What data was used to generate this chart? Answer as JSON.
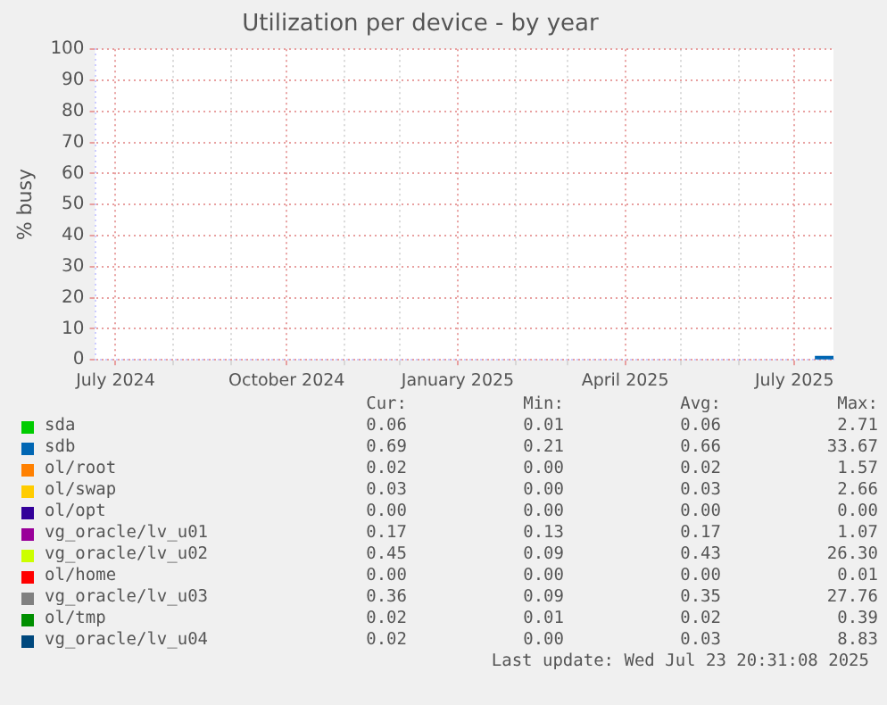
{
  "chart_data": {
    "type": "line",
    "title": "Utilization per device - by year",
    "ylabel": "% busy",
    "x": [
      "2025-07-12",
      "2025-07-22"
    ],
    "series": [
      {
        "name": "sda",
        "color": "#00cc00",
        "values": [
          null,
          null
        ]
      },
      {
        "name": "sdb",
        "color": "#0066b3",
        "values": [
          0.7,
          0.7
        ]
      },
      {
        "name": "ol/root",
        "color": "#ff8000",
        "values": [
          null,
          null
        ]
      },
      {
        "name": "ol/swap",
        "color": "#ffcc00",
        "values": [
          null,
          null
        ]
      },
      {
        "name": "ol/opt",
        "color": "#330099",
        "values": [
          null,
          null
        ]
      },
      {
        "name": "vg_oracle/lv_u01",
        "color": "#990099",
        "values": [
          null,
          null
        ]
      },
      {
        "name": "vg_oracle/lv_u02",
        "color": "#ccff00",
        "values": [
          null,
          null
        ]
      },
      {
        "name": "ol/home",
        "color": "#ff0000",
        "values": [
          null,
          null
        ]
      },
      {
        "name": "vg_oracle/lv_u03",
        "color": "#808080",
        "values": [
          null,
          null
        ]
      },
      {
        "name": "ol/tmp",
        "color": "#008f00",
        "values": [
          null,
          null
        ]
      },
      {
        "name": "vg_oracle/lv_u04",
        "color": "#00487d",
        "values": [
          null,
          null
        ]
      }
    ],
    "xlim": [
      "2024-06-20",
      "2025-07-22"
    ],
    "xticks": [
      {
        "value": "2024-07-01",
        "label": "July 2024"
      },
      {
        "value": "2024-08-01",
        "label": null
      },
      {
        "value": "2024-09-01",
        "label": null
      },
      {
        "value": "2024-10-01",
        "label": "October 2024"
      },
      {
        "value": "2024-11-01",
        "label": null
      },
      {
        "value": "2024-12-01",
        "label": null
      },
      {
        "value": "2025-01-01",
        "label": "January 2025"
      },
      {
        "value": "2025-02-01",
        "label": null
      },
      {
        "value": "2025-03-01",
        "label": null
      },
      {
        "value": "2025-04-01",
        "label": "April 2025"
      },
      {
        "value": "2025-05-01",
        "label": null
      },
      {
        "value": "2025-06-01",
        "label": null
      },
      {
        "value": "2025-07-01",
        "label": "July 2025"
      }
    ],
    "ylim": [
      0,
      100
    ],
    "yticks": [
      0,
      10,
      20,
      30,
      40,
      50,
      60,
      70,
      80,
      90,
      100
    ],
    "grid": true,
    "legend": "bottom",
    "marker": "none",
    "line_style": "solid",
    "annotations": [
      "Cur: Min: Avg: Max:",
      "0.06 0.01 0.06 2.71",
      "0.69 0.21 0.66 33.67",
      "0.02 0.00 0.02 1.57",
      "0.03 0.00 0.03 2.66",
      "0.00 0.00 0.00 0.00",
      "0.17 0.13 0.17 1.07",
      "0.45 0.09 0.43 26.30",
      "0.00 0.00 0.00 0.01",
      "0.36 0.09 0.35 27.76",
      "0.02 0.01 0.02 0.39",
      "0.02 0.00 0.03 8.83",
      "Last update: Wed Jul 23 20:31:08 2025"
    ]
  }
}
